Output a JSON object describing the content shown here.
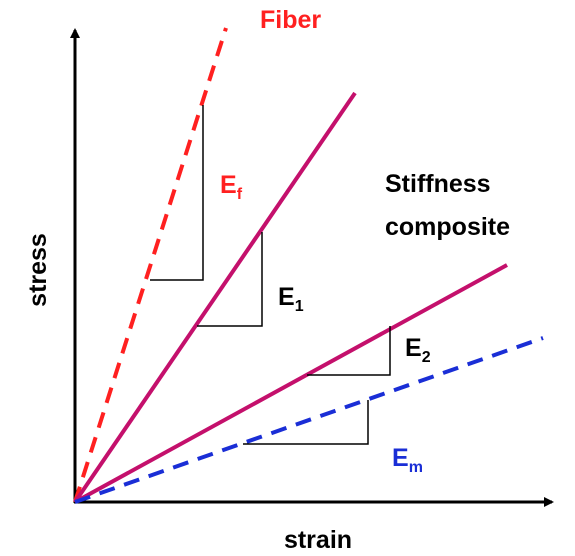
{
  "title": "Fiber",
  "axes": {
    "y_label": "stress",
    "x_label": "strain"
  },
  "composite_label": [
    "Stiffness",
    "composite"
  ],
  "moduli": [
    {
      "base": "E",
      "sub": "f"
    },
    {
      "base": "E",
      "sub": "1"
    },
    {
      "base": "E",
      "sub": "2"
    },
    {
      "base": "E",
      "sub": "m"
    }
  ]
}
